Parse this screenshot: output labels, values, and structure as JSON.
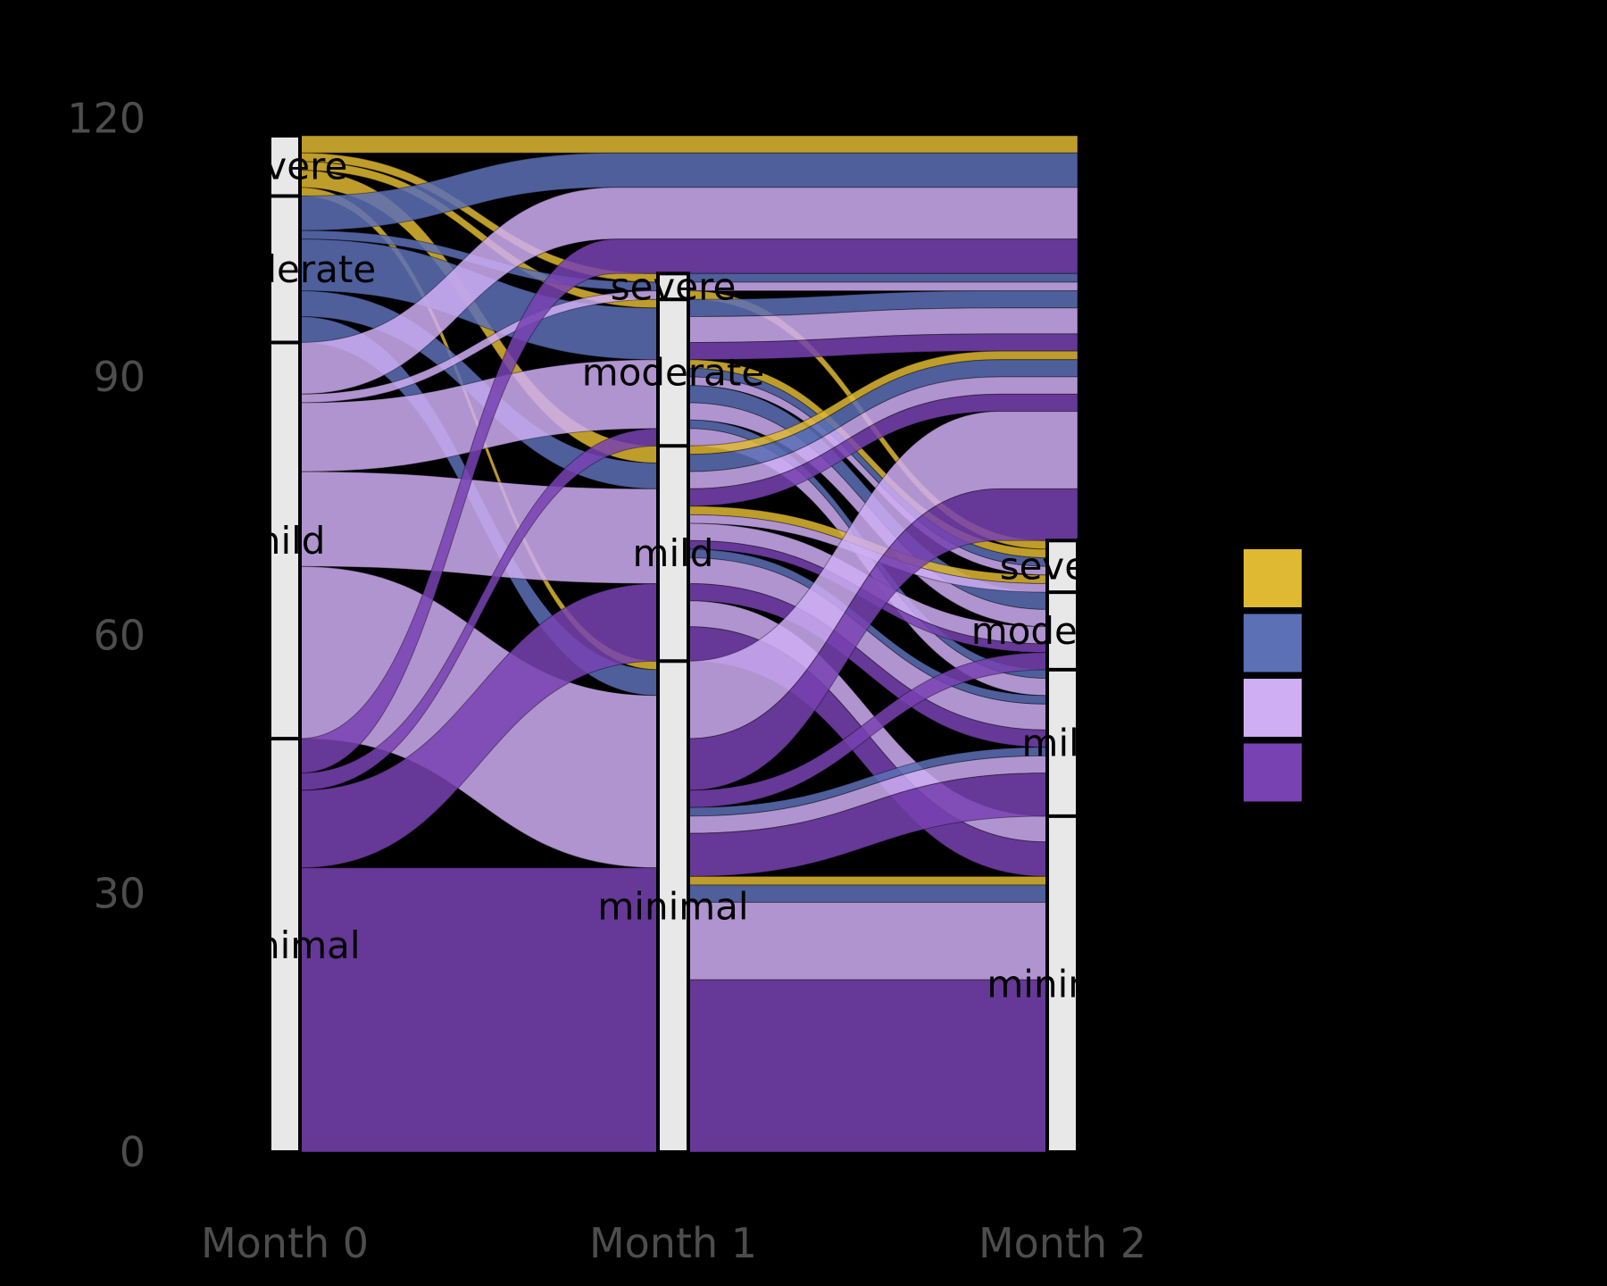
{
  "figure": {
    "background": "#000000",
    "axis_text_color": "#4d4d4d",
    "stratum_fill": "#e8e8e8",
    "stratum_border": "#000000",
    "stratum_label_color": "#000000"
  },
  "chart_data": {
    "type": "alluvial",
    "title": "",
    "x_axis": {
      "labels": [
        "Month 0",
        "Month 1",
        "Month 2"
      ]
    },
    "y_axis": {
      "tick_values": [
        0,
        30,
        60,
        90,
        120
      ],
      "tick_labels": [
        "0",
        "30",
        "60",
        "90",
        "120"
      ],
      "range": [
        0,
        120
      ],
      "grid": false
    },
    "categories": [
      "severe",
      "moderate",
      "mild",
      "minimal"
    ],
    "colors": {
      "severe": "#dfb932",
      "moderate": "#5c70b6",
      "mild": "#cfaef3",
      "minimal": "#7842b2"
    },
    "strata": [
      {
        "axis": "Month 0",
        "total": 118,
        "counts": {
          "severe": 7,
          "moderate": 17,
          "mild": 46,
          "minimal": 48
        }
      },
      {
        "axis": "Month 1",
        "total": 102,
        "counts": {
          "severe": 3,
          "moderate": 17,
          "mild": 25,
          "minimal": 57
        }
      },
      {
        "axis": "Month 2",
        "total": 71,
        "counts": {
          "severe": 6,
          "moderate": 9,
          "mild": 17,
          "minimal": 39
        }
      }
    ],
    "dropouts": {
      "month0_to_month1": 16,
      "month1_to_month2": 31
    },
    "flows_month0_to_month1": [
      {
        "from": "severe",
        "to": "dropout",
        "n": 2
      },
      {
        "from": "severe",
        "to": "severe",
        "n": 1
      },
      {
        "from": "severe",
        "to": "moderate",
        "n": 1
      },
      {
        "from": "severe",
        "to": "mild",
        "n": 2
      },
      {
        "from": "severe",
        "to": "minimal",
        "n": 1
      },
      {
        "from": "moderate",
        "to": "dropout",
        "n": 4
      },
      {
        "from": "moderate",
        "to": "severe",
        "n": 1
      },
      {
        "from": "moderate",
        "to": "moderate",
        "n": 6
      },
      {
        "from": "moderate",
        "to": "mild",
        "n": 3
      },
      {
        "from": "moderate",
        "to": "minimal",
        "n": 3
      },
      {
        "from": "mild",
        "to": "dropout",
        "n": 6
      },
      {
        "from": "mild",
        "to": "severe",
        "n": 1
      },
      {
        "from": "mild",
        "to": "moderate",
        "n": 8
      },
      {
        "from": "mild",
        "to": "mild",
        "n": 11
      },
      {
        "from": "mild",
        "to": "minimal",
        "n": 20
      },
      {
        "from": "minimal",
        "to": "dropout",
        "n": 4
      },
      {
        "from": "minimal",
        "to": "moderate",
        "n": 2
      },
      {
        "from": "minimal",
        "to": "mild",
        "n": 9
      },
      {
        "from": "minimal",
        "to": "minimal",
        "n": 33
      }
    ],
    "flows_month1_to_month2": [
      {
        "from": "severe",
        "to": "dropout",
        "n": 1,
        "origin": "moderate"
      },
      {
        "from": "severe",
        "to": "dropout",
        "n": 1,
        "origin": "mild"
      },
      {
        "from": "severe",
        "to": "severe",
        "n": 1,
        "origin": "severe"
      },
      {
        "from": "moderate",
        "to": "dropout",
        "n": 2,
        "origin": "moderate"
      },
      {
        "from": "moderate",
        "to": "dropout",
        "n": 3,
        "origin": "mild"
      },
      {
        "from": "moderate",
        "to": "dropout",
        "n": 2,
        "origin": "minimal"
      },
      {
        "from": "moderate",
        "to": "severe",
        "n": 1,
        "origin": "severe"
      },
      {
        "from": "moderate",
        "to": "severe",
        "n": 1,
        "origin": "moderate"
      },
      {
        "from": "moderate",
        "to": "severe",
        "n": 1,
        "origin": "mild"
      },
      {
        "from": "moderate",
        "to": "moderate",
        "n": 2,
        "origin": "moderate"
      },
      {
        "from": "moderate",
        "to": "moderate",
        "n": 2,
        "origin": "mild"
      },
      {
        "from": "moderate",
        "to": "mild",
        "n": 1,
        "origin": "moderate"
      },
      {
        "from": "moderate",
        "to": "mild",
        "n": 2,
        "origin": "mild"
      },
      {
        "from": "mild",
        "to": "dropout",
        "n": 1,
        "origin": "severe"
      },
      {
        "from": "mild",
        "to": "dropout",
        "n": 2,
        "origin": "moderate"
      },
      {
        "from": "mild",
        "to": "dropout",
        "n": 2,
        "origin": "mild"
      },
      {
        "from": "mild",
        "to": "dropout",
        "n": 2,
        "origin": "minimal"
      },
      {
        "from": "mild",
        "to": "severe",
        "n": 1,
        "origin": "severe"
      },
      {
        "from": "mild",
        "to": "severe",
        "n": 1,
        "origin": "mild"
      },
      {
        "from": "mild",
        "to": "moderate",
        "n": 2,
        "origin": "mild"
      },
      {
        "from": "mild",
        "to": "moderate",
        "n": 1,
        "origin": "minimal"
      },
      {
        "from": "mild",
        "to": "mild",
        "n": 1,
        "origin": "moderate"
      },
      {
        "from": "mild",
        "to": "mild",
        "n": 3,
        "origin": "mild"
      },
      {
        "from": "mild",
        "to": "mild",
        "n": 2,
        "origin": "minimal"
      },
      {
        "from": "mild",
        "to": "minimal",
        "n": 3,
        "origin": "mild"
      },
      {
        "from": "mild",
        "to": "minimal",
        "n": 4,
        "origin": "minimal"
      },
      {
        "from": "minimal",
        "to": "dropout",
        "n": 9,
        "origin": "mild"
      },
      {
        "from": "minimal",
        "to": "dropout",
        "n": 6,
        "origin": "minimal"
      },
      {
        "from": "minimal",
        "to": "moderate",
        "n": 2,
        "origin": "minimal"
      },
      {
        "from": "minimal",
        "to": "mild",
        "n": 1,
        "origin": "moderate"
      },
      {
        "from": "minimal",
        "to": "mild",
        "n": 2,
        "origin": "mild"
      },
      {
        "from": "minimal",
        "to": "mild",
        "n": 5,
        "origin": "minimal"
      },
      {
        "from": "minimal",
        "to": "minimal",
        "n": 1,
        "origin": "severe"
      },
      {
        "from": "minimal",
        "to": "minimal",
        "n": 2,
        "origin": "moderate"
      },
      {
        "from": "minimal",
        "to": "minimal",
        "n": 9,
        "origin": "mild"
      },
      {
        "from": "minimal",
        "to": "minimal",
        "n": 20,
        "origin": "minimal"
      }
    ],
    "legend": {
      "swatch_colors": [
        "#dfb932",
        "#5c70b6",
        "#cfaef3",
        "#7842b2"
      ],
      "visible_text": ""
    }
  }
}
